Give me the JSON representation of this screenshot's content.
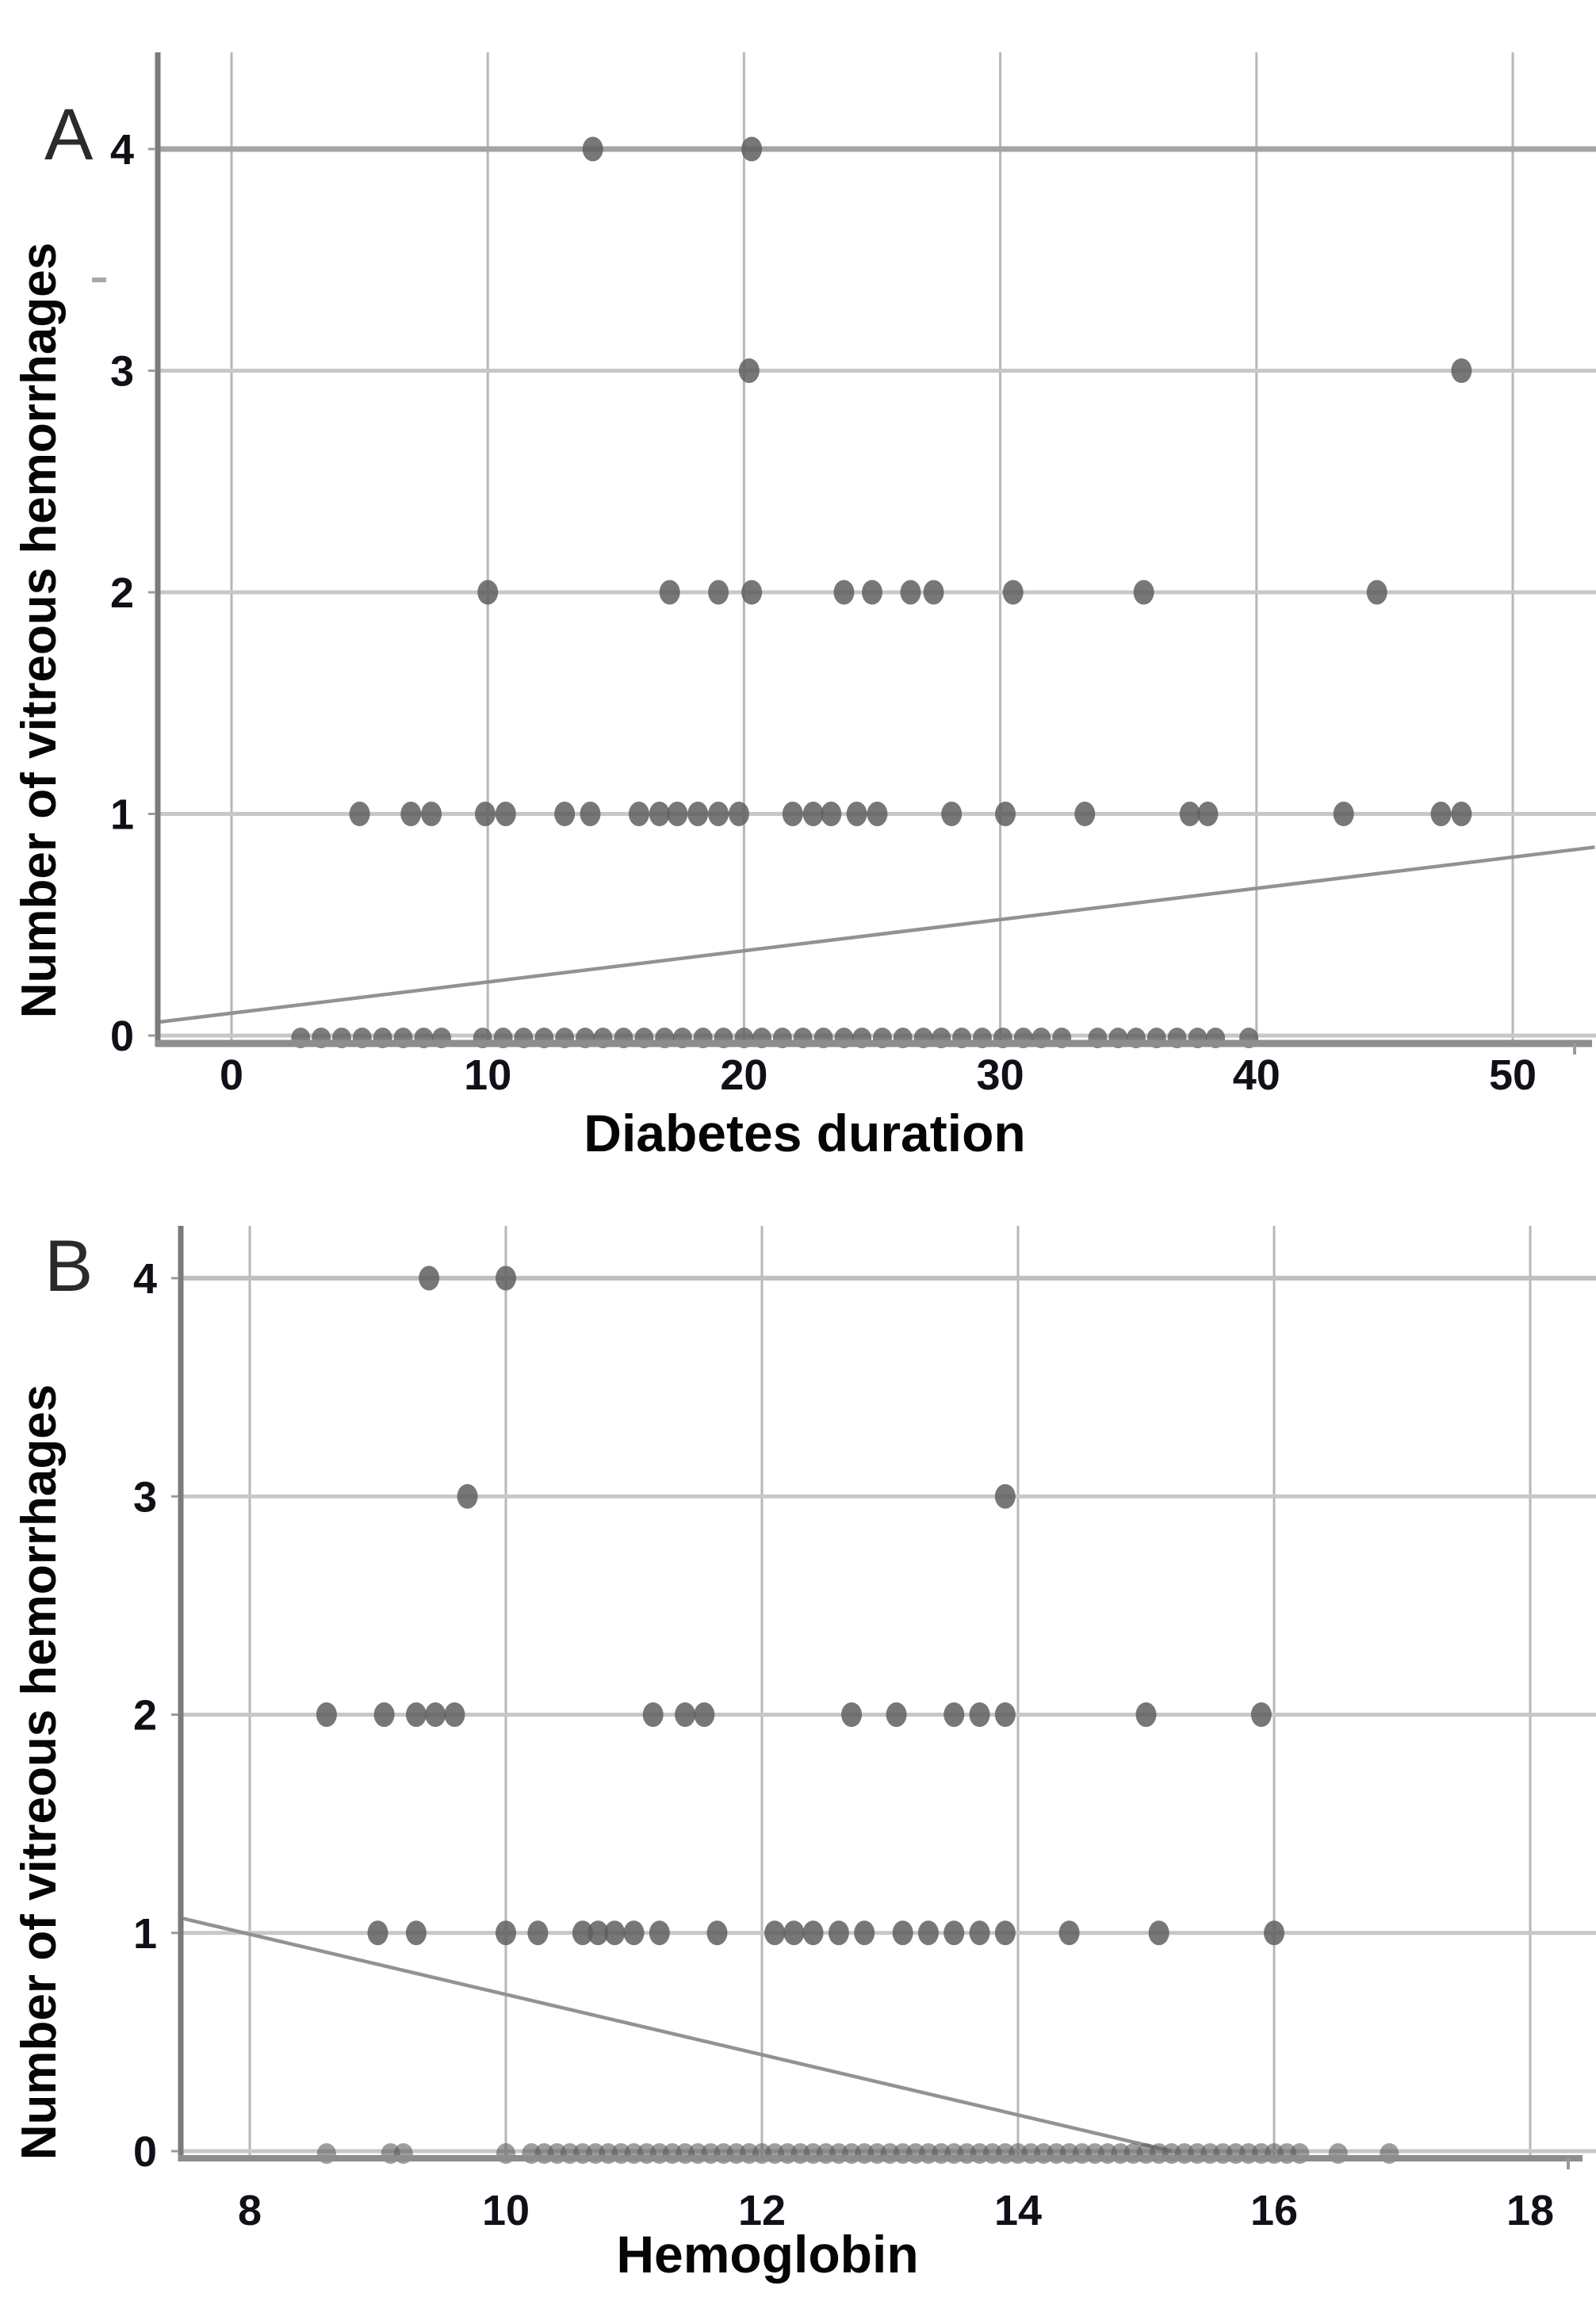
{
  "figure": {
    "description": "Two-panel scatter plot of number of vitreous hemorrhages versus diabetes duration (A) and hemoglobin (B), each with a linear fit line",
    "background_color": "#ffffff",
    "dot_color": "#5d5d5d",
    "grid_color": "#c7c7c7",
    "axis_color": "#7b7b7b",
    "fit_line_color": "#929292"
  },
  "chart_data": [
    {
      "panel": "A",
      "type": "scatter",
      "title": "",
      "xlabel": "Diabetes duration",
      "ylabel": "Number of vitreous hemorrhages",
      "xlim": [
        -2.9,
        53.2
      ],
      "ylim": [
        0,
        4.43
      ],
      "grid": true,
      "xticks": {
        "values": [
          0,
          10,
          20,
          30,
          40,
          50
        ],
        "labels": [
          "0",
          "10",
          "20",
          "30",
          "40",
          "50"
        ]
      },
      "yticks": {
        "values": [
          4,
          3,
          2,
          1,
          0
        ],
        "labels": [
          "4",
          "3",
          "2",
          "1",
          "0"
        ]
      },
      "series": [
        {
          "name": "y4",
          "y": 4,
          "x": [
            14.1,
            20.3
          ]
        },
        {
          "name": "y3",
          "y": 3,
          "x": [
            20.2,
            48.0
          ]
        },
        {
          "name": "y2",
          "y": 2,
          "x": [
            10.0,
            17.1,
            19.0,
            20.3,
            23.9,
            25.0,
            26.5,
            27.4,
            30.5,
            35.6,
            44.7
          ]
        },
        {
          "name": "y1",
          "y": 1,
          "x": [
            5.0,
            7.0,
            7.8,
            9.9,
            10.7,
            13.0,
            14.0,
            15.9,
            16.7,
            17.4,
            18.2,
            19.0,
            19.8,
            21.9,
            22.7,
            23.4,
            24.4,
            25.2,
            28.1,
            30.2,
            33.3,
            37.4,
            38.1,
            43.4,
            47.2,
            48.0
          ]
        },
        {
          "name": "y0",
          "y": 0,
          "x": [
            2.7,
            3.5,
            4.3,
            5.1,
            5.9,
            6.7,
            7.5,
            8.2,
            9.8,
            10.6,
            11.4,
            12.2,
            13.0,
            13.8,
            14.5,
            15.3,
            16.1,
            16.9,
            17.6,
            18.4,
            19.2,
            20.0,
            20.7,
            21.5,
            22.3,
            23.1,
            23.9,
            24.6,
            25.4,
            26.2,
            27.0,
            27.7,
            28.5,
            29.3,
            30.1,
            30.9,
            31.6,
            32.4,
            33.8,
            34.6,
            35.3,
            36.1,
            36.9,
            37.7,
            38.4,
            39.7
          ]
        }
      ],
      "fit_line": {
        "x": [
          -2.9,
          53.2
        ],
        "y": [
          0.06,
          0.85
        ]
      }
    },
    {
      "panel": "B",
      "type": "scatter",
      "title": "",
      "xlabel": "Hemoglobin",
      "ylabel": "Number of vitreous hemorrhages",
      "xlim": [
        7.45,
        18.5
      ],
      "ylim": [
        0,
        4.24
      ],
      "grid": true,
      "xticks": {
        "values": [
          8,
          10,
          12,
          14,
          16,
          18
        ],
        "labels": [
          "8",
          "10",
          "12",
          "14",
          "16",
          "18"
        ]
      },
      "yticks": {
        "values": [
          4,
          3,
          2,
          1,
          0
        ],
        "labels": [
          "4",
          "3",
          "2",
          "1",
          "0"
        ]
      },
      "series": [
        {
          "name": "y4",
          "y": 4,
          "x": [
            9.4,
            10.0
          ]
        },
        {
          "name": "y3",
          "y": 3,
          "x": [
            9.7,
            13.9
          ]
        },
        {
          "name": "y2",
          "y": 2,
          "x": [
            8.6,
            9.05,
            9.3,
            9.45,
            9.6,
            11.15,
            11.4,
            11.55,
            12.7,
            13.05,
            13.5,
            13.7,
            13.9,
            15.0,
            15.9
          ]
        },
        {
          "name": "y1",
          "y": 1,
          "x": [
            9.0,
            9.3,
            10.0,
            10.25,
            10.6,
            10.72,
            10.85,
            11.0,
            11.2,
            11.65,
            12.1,
            12.25,
            12.4,
            12.6,
            12.8,
            13.1,
            13.3,
            13.5,
            13.7,
            13.9,
            14.4,
            15.1,
            16.0
          ]
        },
        {
          "name": "y0",
          "y": 0,
          "x": [
            8.6,
            9.1,
            9.2,
            10.0,
            10.2,
            10.3,
            10.4,
            10.5,
            10.6,
            10.7,
            10.8,
            10.9,
            11.0,
            11.1,
            11.2,
            11.3,
            11.4,
            11.5,
            11.6,
            11.7,
            11.8,
            11.9,
            12.0,
            12.1,
            12.2,
            12.3,
            12.4,
            12.5,
            12.6,
            12.7,
            12.8,
            12.9,
            13.0,
            13.1,
            13.2,
            13.3,
            13.4,
            13.5,
            13.6,
            13.7,
            13.8,
            13.9,
            14.0,
            14.1,
            14.2,
            14.3,
            14.4,
            14.5,
            14.6,
            14.7,
            14.8,
            14.9,
            15.0,
            15.1,
            15.2,
            15.3,
            15.4,
            15.5,
            15.6,
            15.7,
            15.8,
            15.9,
            16.0,
            16.1,
            16.2,
            16.5,
            16.9
          ]
        }
      ],
      "fit_line": {
        "x": [
          7.45,
          15.2
        ],
        "y": [
          1.07,
          0.0
        ]
      }
    }
  ]
}
